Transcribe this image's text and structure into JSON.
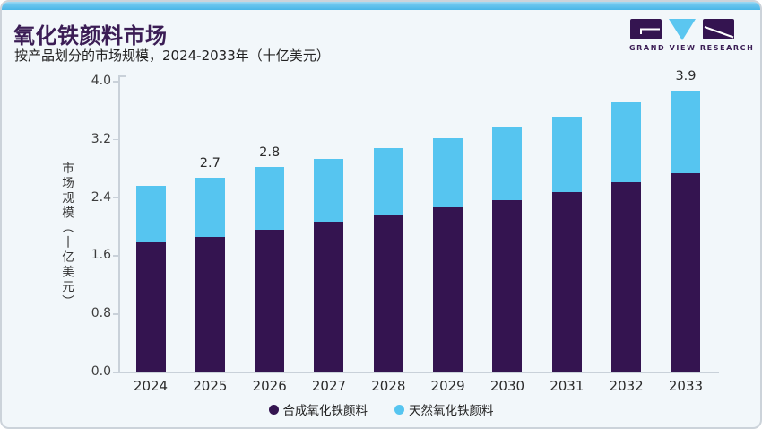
{
  "header": {
    "title": "氧化铁颜料市场",
    "subtitle": "按产品划分的市场规模，2024-2033年（十亿美元）",
    "logo_brand": "GRAND VIEW RESEARCH"
  },
  "colors": {
    "background": "#f2f7fa",
    "top_strip_from": "#9ddaf4",
    "top_strip_to": "#49b6e8",
    "title_purple": "#3b1d55",
    "axis_gray": "#c9d1d9",
    "synthetic_purple": "#341450",
    "natural_blue": "#56c5f0"
  },
  "chart_data": {
    "type": "bar",
    "stacked": true,
    "title": "氧化铁颜料市场",
    "subtitle": "按产品划分的市场规模，2024-2033年（十亿美元）",
    "categories": [
      "2024",
      "2025",
      "2026",
      "2027",
      "2028",
      "2029",
      "2030",
      "2031",
      "2032",
      "2033"
    ],
    "series": [
      {
        "name": "合成氧化铁颜料",
        "color": "#341450",
        "values": [
          1.78,
          1.85,
          1.95,
          2.06,
          2.15,
          2.26,
          2.36,
          2.47,
          2.6,
          2.73
        ]
      },
      {
        "name": "天然氧化铁颜料",
        "color": "#56c5f0",
        "values": [
          0.77,
          0.82,
          0.86,
          0.86,
          0.92,
          0.95,
          1.0,
          1.04,
          1.1,
          1.13
        ]
      }
    ],
    "totals": [
      2.55,
      2.67,
      2.81,
      2.92,
      3.07,
      3.21,
      3.36,
      3.51,
      3.7,
      3.86
    ],
    "data_labels": [
      {
        "category_index": 1,
        "text": "2.7"
      },
      {
        "category_index": 2,
        "text": "2.8"
      },
      {
        "category_index": 9,
        "text": "3.9"
      }
    ],
    "ylabel": "市场规模（十亿美元）",
    "yticks": [
      "0.0",
      "0.8",
      "1.6",
      "2.4",
      "3.2",
      "4.0"
    ],
    "ylim": [
      0,
      4.0
    ],
    "grid": false,
    "legend_position": "bottom"
  }
}
